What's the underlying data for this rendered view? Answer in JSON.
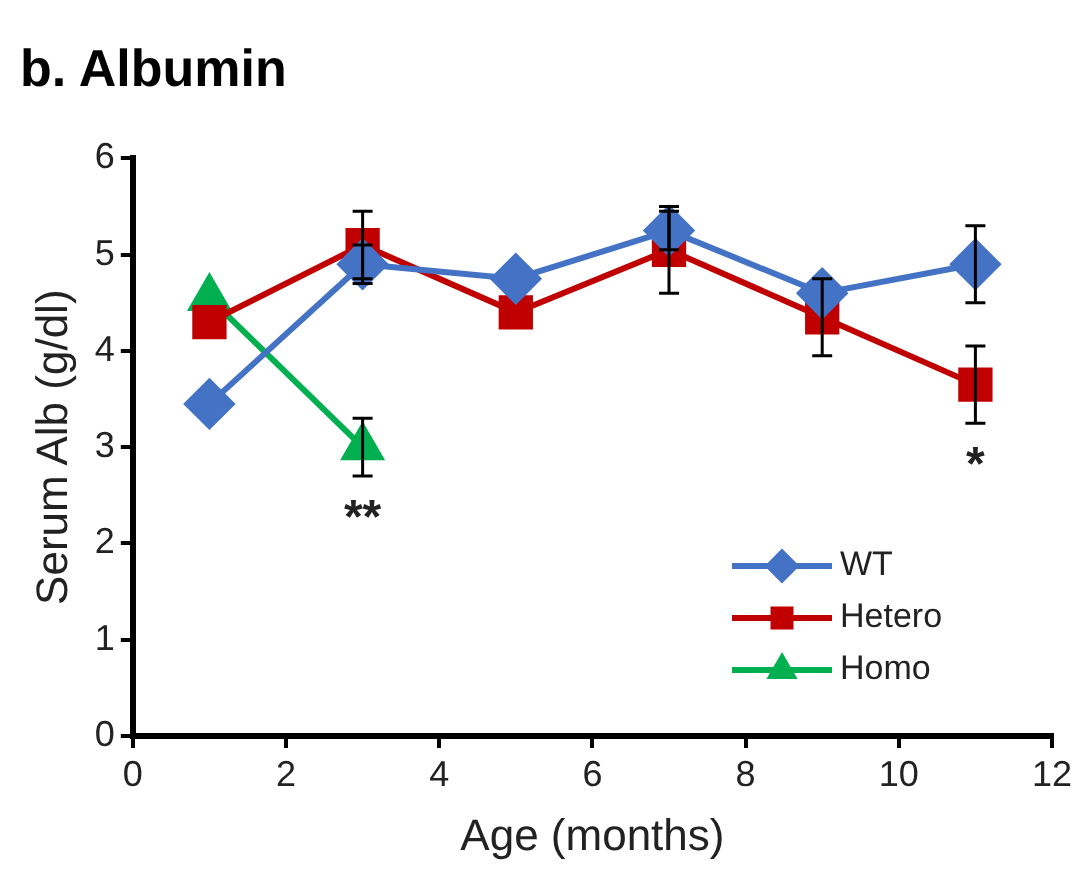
{
  "chart_data": {
    "type": "line",
    "title": "b. Albumin",
    "xlabel": "Age (months)",
    "ylabel": "Serum Alb (g/dl)",
    "xlim": [
      0,
      12
    ],
    "xticks": [
      0,
      2,
      4,
      6,
      8,
      10,
      12
    ],
    "ylim": [
      0,
      6
    ],
    "yticks": [
      0,
      1,
      2,
      3,
      4,
      5,
      6
    ],
    "grid": false,
    "legend": "bottom right",
    "line_style": "solid",
    "series": [
      {
        "name": "WT",
        "color": "#4472c4",
        "marker": "diamond",
        "x": [
          1,
          3,
          5,
          7,
          9,
          11
        ],
        "values": [
          3.45,
          4.9,
          4.75,
          5.25,
          4.6,
          4.9
        ],
        "errors": [
          null,
          0.2,
          null,
          0.2,
          null,
          0.4
        ]
      },
      {
        "name": "Hetero",
        "color": "#c00000",
        "marker": "square",
        "x": [
          1,
          3,
          5,
          7,
          9,
          11
        ],
        "values": [
          4.3,
          5.1,
          4.4,
          5.05,
          4.35,
          3.65
        ],
        "errors": [
          null,
          0.35,
          null,
          0.45,
          0.4,
          0.4
        ]
      },
      {
        "name": "Homo",
        "color": "#00b050",
        "marker": "triangle",
        "x": [
          1,
          3
        ],
        "values": [
          4.55,
          3.0
        ],
        "errors": [
          null,
          0.3
        ]
      }
    ],
    "annotations": [
      {
        "text": "**",
        "x": 3,
        "y": 3.0
      },
      {
        "text": "*",
        "x": 11,
        "y": 3.65
      }
    ]
  }
}
